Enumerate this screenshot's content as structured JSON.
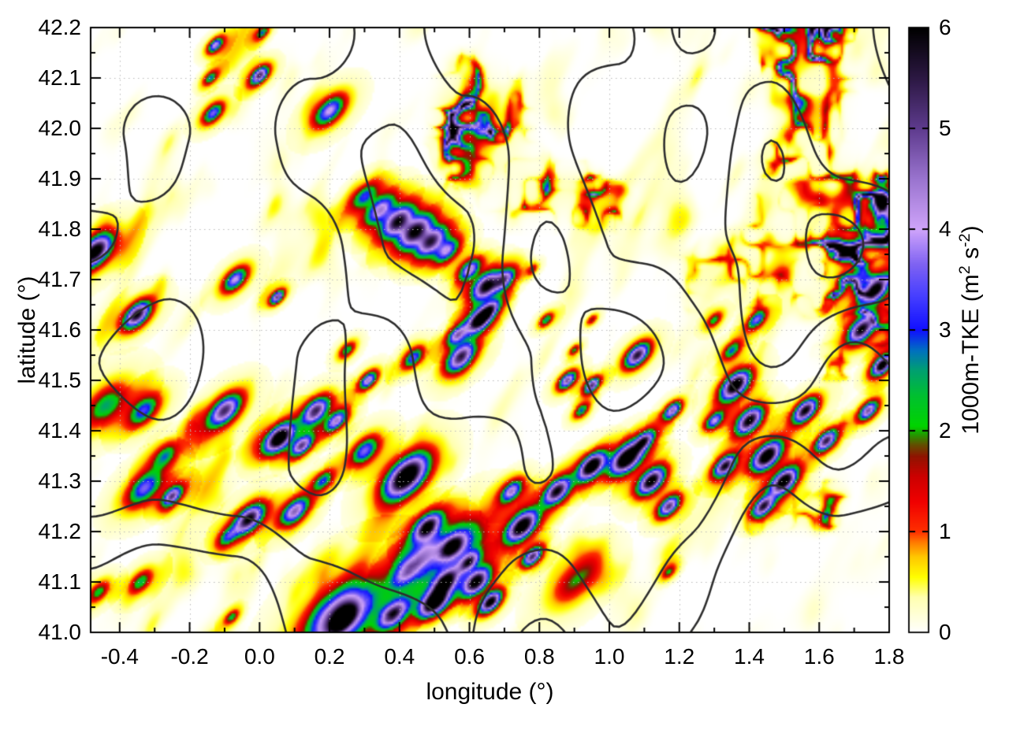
{
  "styles": {
    "page_background": "#ffffff",
    "axis_color": "#000000",
    "text_color": "#000000",
    "grid_color": "#b8b8b8",
    "contour_color": "#2e2e2e"
  },
  "chart_data": {
    "type": "heatmap",
    "subtype": "geographic field map with terrain contour overlay",
    "title": "",
    "xlabel": "longitude (°)",
    "ylabel": "latitude (°)",
    "x_range": [
      -0.483,
      1.8
    ],
    "y_range": [
      41.0,
      42.2
    ],
    "x_major_ticks": [
      -0.4,
      -0.2,
      0.0,
      0.2,
      0.4,
      0.6,
      0.8,
      1.0,
      1.2,
      1.4,
      1.6,
      1.8
    ],
    "x_tick_labels": [
      "-0.4",
      "-0.2",
      "0.0",
      "0.2",
      "0.4",
      "0.6",
      "0.8",
      "1.0",
      "1.2",
      "1.4",
      "1.6",
      "1.8"
    ],
    "x_minor_step": 0.1,
    "y_major_ticks": [
      41.0,
      41.1,
      41.2,
      41.3,
      41.4,
      41.5,
      41.6,
      41.7,
      41.8,
      41.9,
      42.0,
      42.1,
      42.2
    ],
    "y_tick_labels": [
      "41.0",
      "41.1",
      "41.2",
      "41.3",
      "41.4",
      "41.5",
      "41.6",
      "41.7",
      "41.8",
      "41.9",
      "42.0",
      "42.1",
      "42.2"
    ],
    "y_minor_step": 0.05,
    "grid": "dotted lines at major ticks, ticks mirrored on all four borders",
    "colorbar": {
      "label_plain": "1000m-TKE (m2 s-2)",
      "label_segments": [
        {
          "text": "1000m-TKE (m",
          "sup": false
        },
        {
          "text": "2",
          "sup": true
        },
        {
          "text": " s",
          "sup": false
        },
        {
          "text": "-2",
          "sup": true
        },
        {
          "text": ")",
          "sup": false
        }
      ],
      "range": [
        0,
        6
      ],
      "ticks": [
        0,
        1,
        2,
        3,
        4,
        5,
        6
      ],
      "tick_labels": [
        "0",
        "1",
        "2",
        "3",
        "4",
        "5",
        "6"
      ],
      "palette_stops": [
        [
          0.0,
          "#ffffff"
        ],
        [
          0.35,
          "#ffffb0"
        ],
        [
          0.55,
          "#ffff00"
        ],
        [
          0.75,
          "#ffc800"
        ],
        [
          0.9,
          "#ff7800"
        ],
        [
          1.0,
          "#ff3000"
        ],
        [
          1.3,
          "#f00000"
        ],
        [
          1.55,
          "#cc0000"
        ],
        [
          1.75,
          "#8f1400"
        ],
        [
          1.87,
          "#5f5200"
        ],
        [
          1.97,
          "#1f9e00"
        ],
        [
          2.05,
          "#00d400"
        ],
        [
          2.35,
          "#00c030"
        ],
        [
          2.6,
          "#00a070"
        ],
        [
          2.8,
          "#0070c0"
        ],
        [
          3.0,
          "#1010ff"
        ],
        [
          3.35,
          "#4840ff"
        ],
        [
          3.65,
          "#7e62f2"
        ],
        [
          4.0,
          "#cfa4fa"
        ],
        [
          4.5,
          "#9a74cf"
        ],
        [
          5.0,
          "#5e3b8e"
        ],
        [
          5.5,
          "#2c1843"
        ],
        [
          6.0,
          "#000000"
        ]
      ]
    },
    "contours": {
      "color": "#2e2e2e",
      "line_width": 2.6,
      "levels": [
        0.52,
        0.64,
        0.76,
        0.88,
        1.0,
        1.12
      ]
    },
    "field": {
      "units": "m2 s-2",
      "value_clip": [
        0,
        6
      ],
      "background": "white with faint yellow wisps (values < ~0.8) streaked NE-SW",
      "dense_regions": [
        {
          "name": "north-pyrenees-band",
          "lon": [
            0.18,
            1.8
          ],
          "lat": [
            41.8,
            42.2
          ]
        },
        {
          "name": "northeast-corner",
          "lon": [
            1.15,
            1.8
          ],
          "lat": [
            41.52,
            42.2
          ]
        },
        {
          "name": "east-central-cluster",
          "lon": [
            1.27,
            1.7
          ],
          "lat": [
            41.18,
            41.6
          ]
        }
      ],
      "hotspots": [
        [
          -0.47,
          41.755,
          0.035,
          6.0
        ],
        [
          -0.35,
          41.63,
          0.028,
          5.3
        ],
        [
          -0.07,
          41.7,
          0.024,
          3.4
        ],
        [
          0.05,
          41.665,
          0.014,
          4.4
        ],
        [
          -0.44,
          41.45,
          0.04,
          1.9
        ],
        [
          -0.33,
          41.44,
          0.03,
          2.4
        ],
        [
          -0.1,
          41.44,
          0.033,
          4.6
        ],
        [
          0.16,
          41.44,
          0.028,
          4.5
        ],
        [
          0.055,
          41.385,
          0.03,
          6.5
        ],
        [
          0.12,
          41.37,
          0.022,
          4.0
        ],
        [
          0.22,
          41.42,
          0.022,
          3.6
        ],
        [
          -0.33,
          41.285,
          0.035,
          2.8
        ],
        [
          -0.25,
          41.27,
          0.02,
          3.8
        ],
        [
          -0.27,
          41.35,
          0.025,
          1.8
        ],
        [
          -0.03,
          41.225,
          0.03,
          5.2
        ],
        [
          -0.09,
          41.19,
          0.02,
          2.0
        ],
        [
          -0.34,
          41.1,
          0.022,
          1.8
        ],
        [
          -0.46,
          41.08,
          0.02,
          1.6
        ],
        [
          -0.08,
          41.03,
          0.012,
          1.6
        ],
        [
          0.1,
          41.24,
          0.028,
          4.0
        ],
        [
          0.18,
          41.3,
          0.02,
          2.2
        ],
        [
          -0.133,
          42.03,
          0.02,
          3.0
        ],
        [
          -0.127,
          42.165,
          0.015,
          3.4
        ],
        [
          -0.14,
          42.1,
          0.013,
          2.0
        ],
        [
          0.2,
          42.035,
          0.03,
          3.4
        ],
        [
          0.0,
          42.105,
          0.018,
          4.5
        ],
        [
          0.008,
          42.19,
          0.012,
          2.0
        ],
        [
          0.3,
          41.865,
          0.025,
          2.2
        ],
        [
          0.345,
          41.838,
          0.03,
          3.2
        ],
        [
          0.395,
          41.815,
          0.032,
          4.6
        ],
        [
          0.445,
          41.795,
          0.033,
          4.8
        ],
        [
          0.49,
          41.775,
          0.03,
          4.2
        ],
        [
          0.535,
          41.757,
          0.025,
          3.0
        ],
        [
          0.6,
          41.72,
          0.022,
          3.4
        ],
        [
          0.648,
          41.688,
          0.028,
          4.9
        ],
        [
          0.7,
          41.7,
          0.022,
          3.6
        ],
        [
          0.63,
          41.62,
          0.025,
          5.6
        ],
        [
          0.66,
          41.64,
          0.02,
          3.0
        ],
        [
          0.575,
          41.545,
          0.03,
          4.7
        ],
        [
          0.565,
          41.59,
          0.02,
          3.3
        ],
        [
          0.44,
          41.545,
          0.02,
          2.8
        ],
        [
          0.31,
          41.5,
          0.018,
          3.8
        ],
        [
          0.25,
          41.56,
          0.015,
          1.8
        ],
        [
          0.23,
          41.03,
          0.07,
          4.8
        ],
        [
          0.24,
          41.028,
          0.02,
          6.2
        ],
        [
          0.38,
          41.035,
          0.03,
          4.5
        ],
        [
          0.5,
          41.06,
          0.03,
          6.2
        ],
        [
          0.53,
          41.1,
          0.025,
          4.5
        ],
        [
          0.42,
          41.12,
          0.03,
          2.2
        ],
        [
          0.42,
          41.31,
          0.045,
          6.5
        ],
        [
          0.3,
          41.36,
          0.028,
          3.0
        ],
        [
          0.47,
          41.15,
          0.04,
          1.8
        ],
        [
          0.58,
          41.18,
          0.05,
          1.6
        ],
        [
          0.48,
          41.21,
          0.028,
          5.0
        ],
        [
          0.55,
          41.17,
          0.025,
          4.0
        ],
        [
          0.62,
          41.1,
          0.028,
          5.5
        ],
        [
          0.66,
          41.06,
          0.022,
          5.8
        ],
        [
          0.6,
          41.14,
          0.02,
          3.5
        ],
        [
          0.72,
          41.28,
          0.022,
          3.6
        ],
        [
          0.75,
          41.21,
          0.032,
          6.0
        ],
        [
          0.78,
          41.15,
          0.02,
          4.5
        ],
        [
          0.85,
          41.28,
          0.028,
          5.0
        ],
        [
          0.9,
          41.1,
          0.04,
          1.3
        ],
        [
          0.95,
          41.33,
          0.028,
          6.2
        ],
        [
          1.05,
          41.345,
          0.033,
          6.4
        ],
        [
          1.12,
          41.3,
          0.028,
          5.8
        ],
        [
          1.17,
          41.25,
          0.022,
          4.5
        ],
        [
          1.1,
          41.38,
          0.02,
          4.0
        ],
        [
          0.88,
          41.5,
          0.018,
          4.2
        ],
        [
          0.95,
          41.49,
          0.016,
          4.6
        ],
        [
          1.08,
          41.55,
          0.025,
          5.0
        ],
        [
          1.18,
          41.44,
          0.018,
          4.0
        ],
        [
          0.92,
          41.44,
          0.014,
          2.2
        ],
        [
          0.82,
          41.62,
          0.013,
          2.0
        ],
        [
          1.36,
          41.49,
          0.03,
          6.2
        ],
        [
          1.4,
          41.42,
          0.028,
          5.6
        ],
        [
          1.45,
          41.35,
          0.03,
          6.3
        ],
        [
          1.5,
          41.3,
          0.028,
          5.8
        ],
        [
          1.44,
          41.25,
          0.022,
          4.6
        ],
        [
          1.33,
          41.33,
          0.022,
          5.0
        ],
        [
          1.56,
          41.44,
          0.025,
          5.4
        ],
        [
          1.62,
          41.38,
          0.022,
          4.8
        ],
        [
          1.3,
          41.42,
          0.018,
          3.2
        ],
        [
          1.72,
          41.6,
          0.028,
          5.2
        ],
        [
          1.76,
          41.68,
          0.028,
          5.6
        ],
        [
          1.78,
          41.53,
          0.02,
          5.8
        ],
        [
          1.74,
          41.44,
          0.02,
          4.2
        ],
        [
          1.3,
          41.62,
          0.014,
          1.6
        ],
        [
          1.42,
          41.62,
          0.018,
          3.0
        ],
        [
          1.35,
          41.56,
          0.018,
          2.2
        ],
        [
          0.78,
          41.72,
          0.01,
          1.2
        ],
        [
          0.95,
          41.62,
          0.01,
          1.2
        ],
        [
          1.17,
          41.12,
          0.012,
          1.3
        ],
        [
          0.9,
          41.56,
          0.01,
          1.5
        ]
      ]
    }
  }
}
